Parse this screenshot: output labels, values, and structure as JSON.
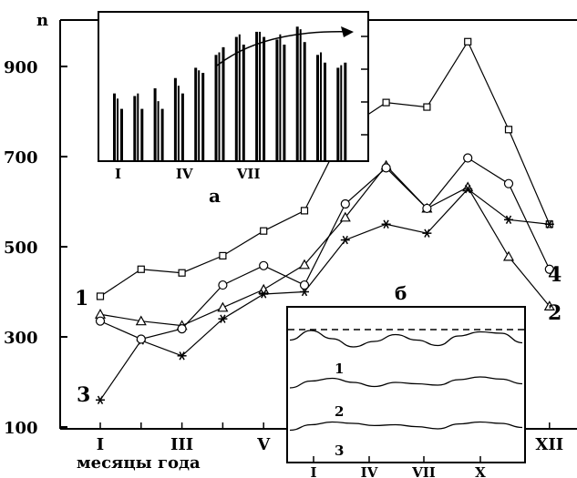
{
  "chart_data": [
    {
      "type": "line",
      "title": "",
      "ylabel": "n",
      "xlabel": "месяцы года",
      "ylim": [
        100,
        1050
      ],
      "y_ticks": [
        "100",
        "300",
        "500",
        "700",
        "900"
      ],
      "x_ticks": [
        "I",
        "III",
        "V",
        "XII"
      ],
      "x": [
        1,
        2,
        3,
        4,
        5,
        6,
        7,
        8,
        9,
        10,
        11,
        12
      ],
      "series": [
        {
          "name": "1",
          "marker": "square",
          "values": [
            390,
            450,
            442,
            480,
            535,
            580,
            760,
            820,
            810,
            955,
            760,
            550
          ]
        },
        {
          "name": "2",
          "marker": "triangle",
          "values": [
            350,
            335,
            325,
            365,
            405,
            460,
            565,
            680,
            585,
            632,
            478,
            368
          ]
        },
        {
          "name": "3",
          "marker": "star",
          "values": [
            160,
            292,
            258,
            340,
            395,
            400,
            515,
            550,
            530,
            628,
            560,
            550
          ]
        },
        {
          "name": "4",
          "marker": "circle",
          "values": [
            335,
            295,
            318,
            415,
            458,
            415,
            595,
            675,
            585,
            697,
            640,
            450
          ]
        }
      ]
    },
    {
      "type": "bar",
      "panel_label": "а",
      "x_ticks": [
        "I",
        "IV",
        "VII"
      ],
      "groups": [
        [
          830,
          820,
          800
        ],
        [
          825,
          830,
          800
        ],
        [
          840,
          815,
          800
        ],
        [
          860,
          845,
          830
        ],
        [
          880,
          875,
          870
        ],
        [
          905,
          910,
          920
        ],
        [
          940,
          945,
          925
        ],
        [
          950,
          950,
          940
        ],
        [
          935,
          945,
          925
        ],
        [
          960,
          955,
          930
        ],
        [
          905,
          910,
          890
        ],
        [
          880,
          885,
          890
        ]
      ],
      "ylim": [
        700,
        980
      ],
      "annotation": "trend-arrow"
    },
    {
      "type": "line",
      "panel_label": "б",
      "x_ticks": [
        "I",
        "IV",
        "VII",
        "X"
      ],
      "reference_line": "dashed",
      "series": [
        {
          "name": "1",
          "values": [
            0.55,
            0.9,
            0.6,
            0.3,
            0.5,
            0.75,
            0.55,
            0.35,
            0.7,
            0.85,
            0.8,
            0.45
          ]
        },
        {
          "name": "2",
          "values": [
            0.3,
            0.55,
            0.65,
            0.5,
            0.35,
            0.5,
            0.45,
            0.4,
            0.6,
            0.7,
            0.62,
            0.45
          ]
        },
        {
          "name": "3",
          "values": [
            0.25,
            0.45,
            0.55,
            0.5,
            0.42,
            0.45,
            0.38,
            0.3,
            0.48,
            0.55,
            0.5,
            0.35
          ]
        }
      ]
    }
  ]
}
